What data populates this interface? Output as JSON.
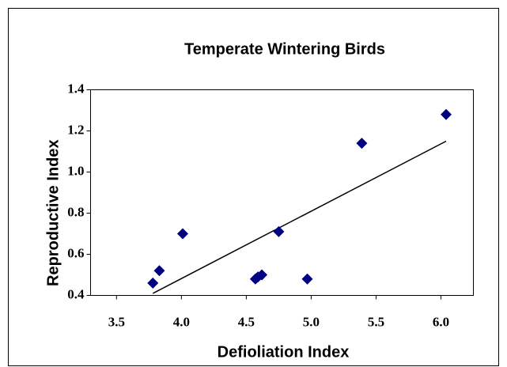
{
  "chart_data": {
    "type": "scatter",
    "title": "Temperate Wintering Birds",
    "x_label": "Defioliation Index",
    "y_label": "Reproductive Index",
    "series": [
      {
        "color": "#000080",
        "x": [
          3.78,
          3.83,
          4.01,
          4.57,
          4.59,
          4.62,
          4.75,
          4.97,
          5.39,
          6.04
        ],
        "values": [
          0.46,
          0.52,
          0.7,
          0.48,
          0.49,
          0.5,
          0.71,
          0.48,
          1.14,
          1.28
        ]
      }
    ],
    "trendline": {
      "color": "#000000",
      "x": [
        3.78,
        6.04
      ],
      "values": [
        0.41,
        1.15
      ]
    },
    "xlim": [
      3.3,
      6.25
    ],
    "xticks": [
      3.5,
      {
        "value": 4,
        "label": "4.0"
      },
      4.5,
      {
        "value": 5,
        "label": "5.0"
      },
      5.5,
      {
        "value": 6,
        "label": "6.0"
      }
    ],
    "ylim": [
      0.4,
      1.4
    ],
    "yticks": [
      0.4,
      0.6,
      0.8,
      {
        "value": 1,
        "label": "1.0"
      },
      1.2,
      1.4
    ]
  }
}
